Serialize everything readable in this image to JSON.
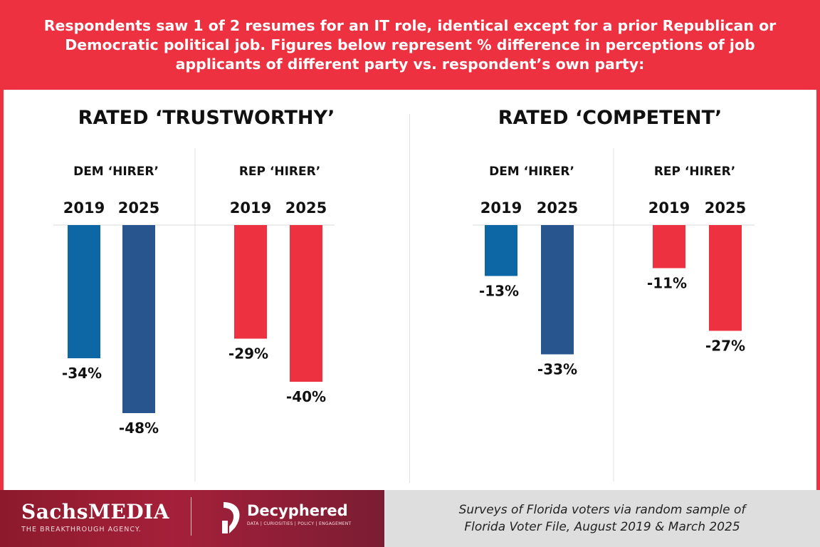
{
  "header": {
    "text": "Respondents saw 1 of 2 resumes for an IT role, identical except for a prior Republican or\nDemocratic political job. Figures below represent % difference in perceptions of job\napplicants of different party vs. respondent’s own party:"
  },
  "colors": {
    "background_red": "#ee3140",
    "dem_2019": "#0d67a5",
    "dem_2025": "#28558e",
    "rep": "#ee3140"
  },
  "chart_data": [
    {
      "type": "bar",
      "title": "RATED ‘TRUSTWORTHY’",
      "groups": [
        {
          "label": "DEM ‘HIRER’",
          "bars": [
            {
              "year": "2019",
              "value": -34,
              "label": "-34%",
              "color": "#0d67a5"
            },
            {
              "year": "2025",
              "value": -48,
              "label": "-48%",
              "color": "#28558e"
            }
          ]
        },
        {
          "label": "REP ‘HIRER’",
          "bars": [
            {
              "year": "2019",
              "value": -29,
              "label": "-29%",
              "color": "#ee3140"
            },
            {
              "year": "2025",
              "value": -40,
              "label": "-40%",
              "color": "#ee3140"
            }
          ]
        }
      ],
      "ylim": [
        -50,
        0
      ]
    },
    {
      "type": "bar",
      "title": "RATED ‘COMPETENT’",
      "groups": [
        {
          "label": "DEM ‘HIRER’",
          "bars": [
            {
              "year": "2019",
              "value": -13,
              "label": "-13%",
              "color": "#0d67a5"
            },
            {
              "year": "2025",
              "value": -33,
              "label": "-33%",
              "color": "#28558e"
            }
          ]
        },
        {
          "label": "REP ‘HIRER’",
          "bars": [
            {
              "year": "2019",
              "value": -11,
              "label": "-11%",
              "color": "#ee3140"
            },
            {
              "year": "2025",
              "value": -27,
              "label": "-27%",
              "color": "#ee3140"
            }
          ]
        }
      ],
      "ylim": [
        -50,
        0
      ]
    }
  ],
  "footer": {
    "sachs_name": "SachsMEDIA",
    "sachs_tagline": "THE BREAKTHROUGH AGENCY.",
    "decyphered_name": "Decyphered",
    "decyphered_tagline": "DATA | CURIOSITIES | POLICY | ENGAGEMENT",
    "source": "Surveys of Florida voters via random sample of\nFlorida Voter File,  August 2019 & March 2025"
  }
}
